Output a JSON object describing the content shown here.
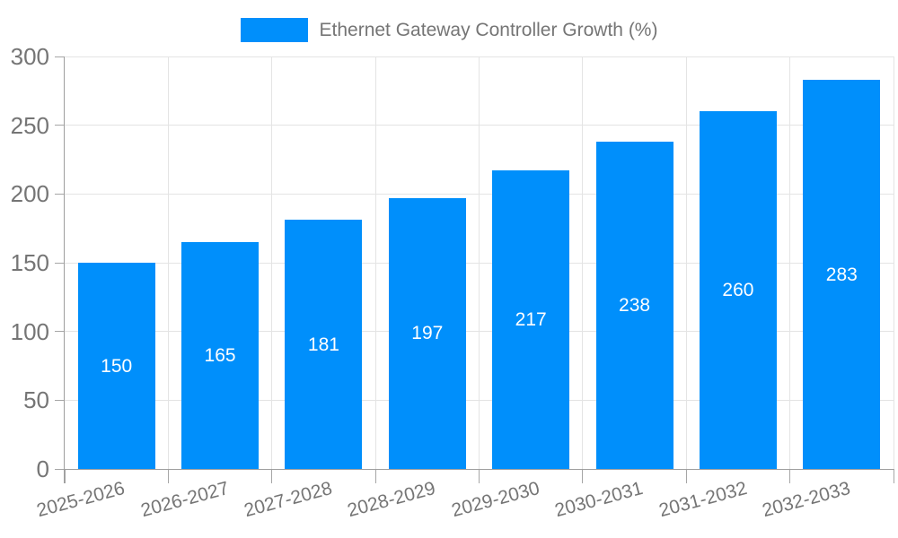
{
  "legend": {
    "label": "Ethernet Gateway Controller Growth (%)"
  },
  "chart_data": {
    "type": "bar",
    "title": "Ethernet Gateway Controller Growth (%)",
    "categories": [
      "2025-2026",
      "2026-2027",
      "2027-2028",
      "2028-2029",
      "2029-2030",
      "2030-2031",
      "2031-2032",
      "2032-2033"
    ],
    "values": [
      150,
      165,
      181,
      197,
      217,
      238,
      260,
      283
    ],
    "xlabel": "",
    "ylabel": "",
    "ylim": [
      0,
      300
    ],
    "yticks": [
      0,
      50,
      100,
      150,
      200,
      250,
      300
    ],
    "grid": "horizontal-and-vertical",
    "legend_position": "top-center",
    "x_label_rotation_deg": -15,
    "value_labels": "centered-inside-bars",
    "colors": {
      "bar": "#008FFB",
      "value_label": "#ffffff",
      "axis_label": "#757575",
      "gridline": "#e4e4e4",
      "axis_line": "#9e9e9e",
      "background": "#ffffff"
    }
  }
}
